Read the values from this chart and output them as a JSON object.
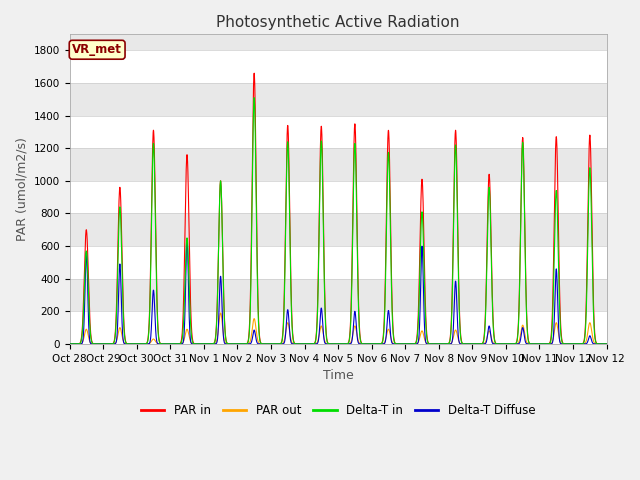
{
  "title": "Photosynthetic Active Radiation",
  "ylabel": "PAR (umol/m2/s)",
  "xlabel": "Time",
  "watermark": "VR_met",
  "ylim": [
    0,
    1900
  ],
  "figsize": [
    6.4,
    4.8
  ],
  "dpi": 100,
  "background_color": "#f0f0f0",
  "plot_bg_color": "#f0f0f0",
  "series": {
    "PAR_in": {
      "color": "#ff0000",
      "label": "PAR in"
    },
    "PAR_out": {
      "color": "#ffa500",
      "label": "PAR out"
    },
    "Delta_T_in": {
      "color": "#00dd00",
      "label": "Delta-T in"
    },
    "Delta_T_Diffuse": {
      "color": "#0000cc",
      "label": "Delta-T Diffuse"
    }
  },
  "days": [
    {
      "date": "Oct 28",
      "par_in": 700,
      "par_out": 90,
      "delta_t_in": 570,
      "delta_t_diff": 560
    },
    {
      "date": "Oct 29",
      "par_in": 960,
      "par_out": 100,
      "delta_t_in": 840,
      "delta_t_diff": 490
    },
    {
      "date": "Oct 30",
      "par_in": 1310,
      "par_out": 30,
      "delta_t_in": 1230,
      "delta_t_diff": 330
    },
    {
      "date": "Oct 31",
      "par_in": 1160,
      "par_out": 90,
      "delta_t_in": 650,
      "delta_t_diff": 640
    },
    {
      "date": "Nov 1",
      "par_in": 1000,
      "par_out": 190,
      "delta_t_in": 1000,
      "delta_t_diff": 415
    },
    {
      "date": "Nov 2",
      "par_in": 1660,
      "par_out": 155,
      "delta_t_in": 1510,
      "delta_t_diff": 85
    },
    {
      "date": "Nov 3",
      "par_in": 1340,
      "par_out": 130,
      "delta_t_in": 1240,
      "delta_t_diff": 210
    },
    {
      "date": "Nov 4",
      "par_in": 1335,
      "par_out": 110,
      "delta_t_in": 1245,
      "delta_t_diff": 220
    },
    {
      "date": "Nov 5",
      "par_in": 1350,
      "par_out": 110,
      "delta_t_in": 1230,
      "delta_t_diff": 200
    },
    {
      "date": "Nov 6",
      "par_in": 1310,
      "par_out": 90,
      "delta_t_in": 1175,
      "delta_t_diff": 205
    },
    {
      "date": "Nov 7",
      "par_in": 1010,
      "par_out": 80,
      "delta_t_in": 810,
      "delta_t_diff": 600
    },
    {
      "date": "Nov 8",
      "par_in": 1310,
      "par_out": 85,
      "delta_t_in": 1220,
      "delta_t_diff": 385
    },
    {
      "date": "Nov 9",
      "par_in": 1040,
      "par_out": 80,
      "delta_t_in": 960,
      "delta_t_diff": 110
    },
    {
      "date": "Nov 10",
      "par_in": 1265,
      "par_out": 115,
      "delta_t_in": 1235,
      "delta_t_diff": 100
    },
    {
      "date": "Nov 11",
      "par_in": 1270,
      "par_out": 130,
      "delta_t_in": 940,
      "delta_t_diff": 460
    },
    {
      "date": "Nov 12",
      "par_in": 1280,
      "par_out": 130,
      "delta_t_in": 1080,
      "delta_t_diff": 50
    }
  ],
  "xtick_labels": [
    "Oct 28",
    "Oct 29",
    "Oct 30",
    "Oct 31",
    "Nov 1",
    "Nov 2",
    "Nov 3",
    "Nov 4",
    "Nov 5",
    "Nov 6",
    "Nov 7",
    "Nov 8",
    "Nov 9",
    "Nov 10",
    "Nov 11",
    "Nov 12",
    "Nov 12"
  ],
  "yticks": [
    0,
    200,
    400,
    600,
    800,
    1000,
    1200,
    1400,
    1600,
    1800
  ],
  "band_colors": [
    "#ffffff",
    "#e8e8e8"
  ],
  "grid_color": "#cccccc",
  "title_fontsize": 11,
  "axis_label_fontsize": 9,
  "tick_fontsize": 7.5
}
